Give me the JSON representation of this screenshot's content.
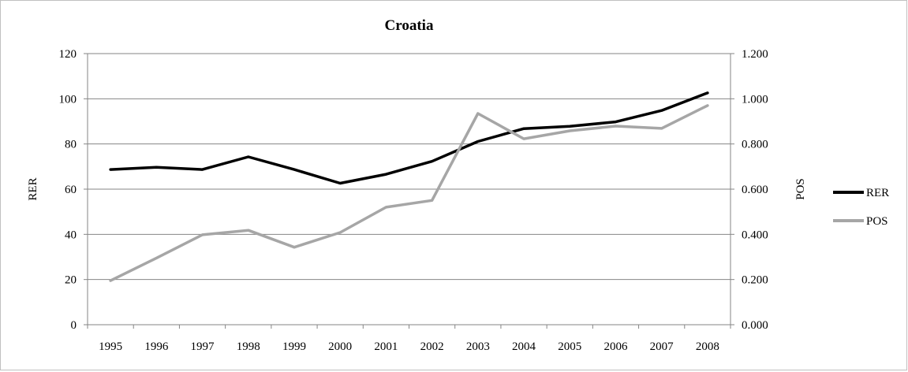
{
  "chart_data": {
    "type": "line",
    "title": "Croatia",
    "x": [
      "1995",
      "1996",
      "1997",
      "1998",
      "1999",
      "2000",
      "2001",
      "2002",
      "2003",
      "2004",
      "2005",
      "2006",
      "2007",
      "2008"
    ],
    "y_left": {
      "label": "RER",
      "range": [
        0,
        120
      ],
      "ticks": [
        "0",
        "20",
        "40",
        "60",
        "80",
        "100",
        "120"
      ],
      "tick_values": [
        0,
        20,
        40,
        60,
        80,
        100,
        120
      ]
    },
    "y_right": {
      "label": "POS",
      "range": [
        0,
        1.2
      ],
      "ticks": [
        "0.000",
        "0.200",
        "0.400",
        "0.600",
        "0.800",
        "1.000",
        "1.200"
      ],
      "tick_values": [
        0,
        0.2,
        0.4,
        0.6,
        0.8,
        1.0,
        1.2
      ]
    },
    "series": [
      {
        "name": "RER",
        "axis": "left",
        "color": "#000000",
        "values": [
          68.7,
          69.7,
          68.7,
          74.3,
          68.7,
          62.6,
          66.6,
          72.3,
          81.1,
          86.8,
          87.8,
          89.8,
          94.8,
          102.6
        ]
      },
      {
        "name": "POS",
        "axis": "right",
        "color": "#a6a6a6",
        "values": [
          0.195,
          0.295,
          0.398,
          0.418,
          0.343,
          0.408,
          0.52,
          0.55,
          0.935,
          0.823,
          0.858,
          0.879,
          0.869,
          0.97
        ]
      }
    ],
    "grid": true,
    "legend": "right"
  }
}
